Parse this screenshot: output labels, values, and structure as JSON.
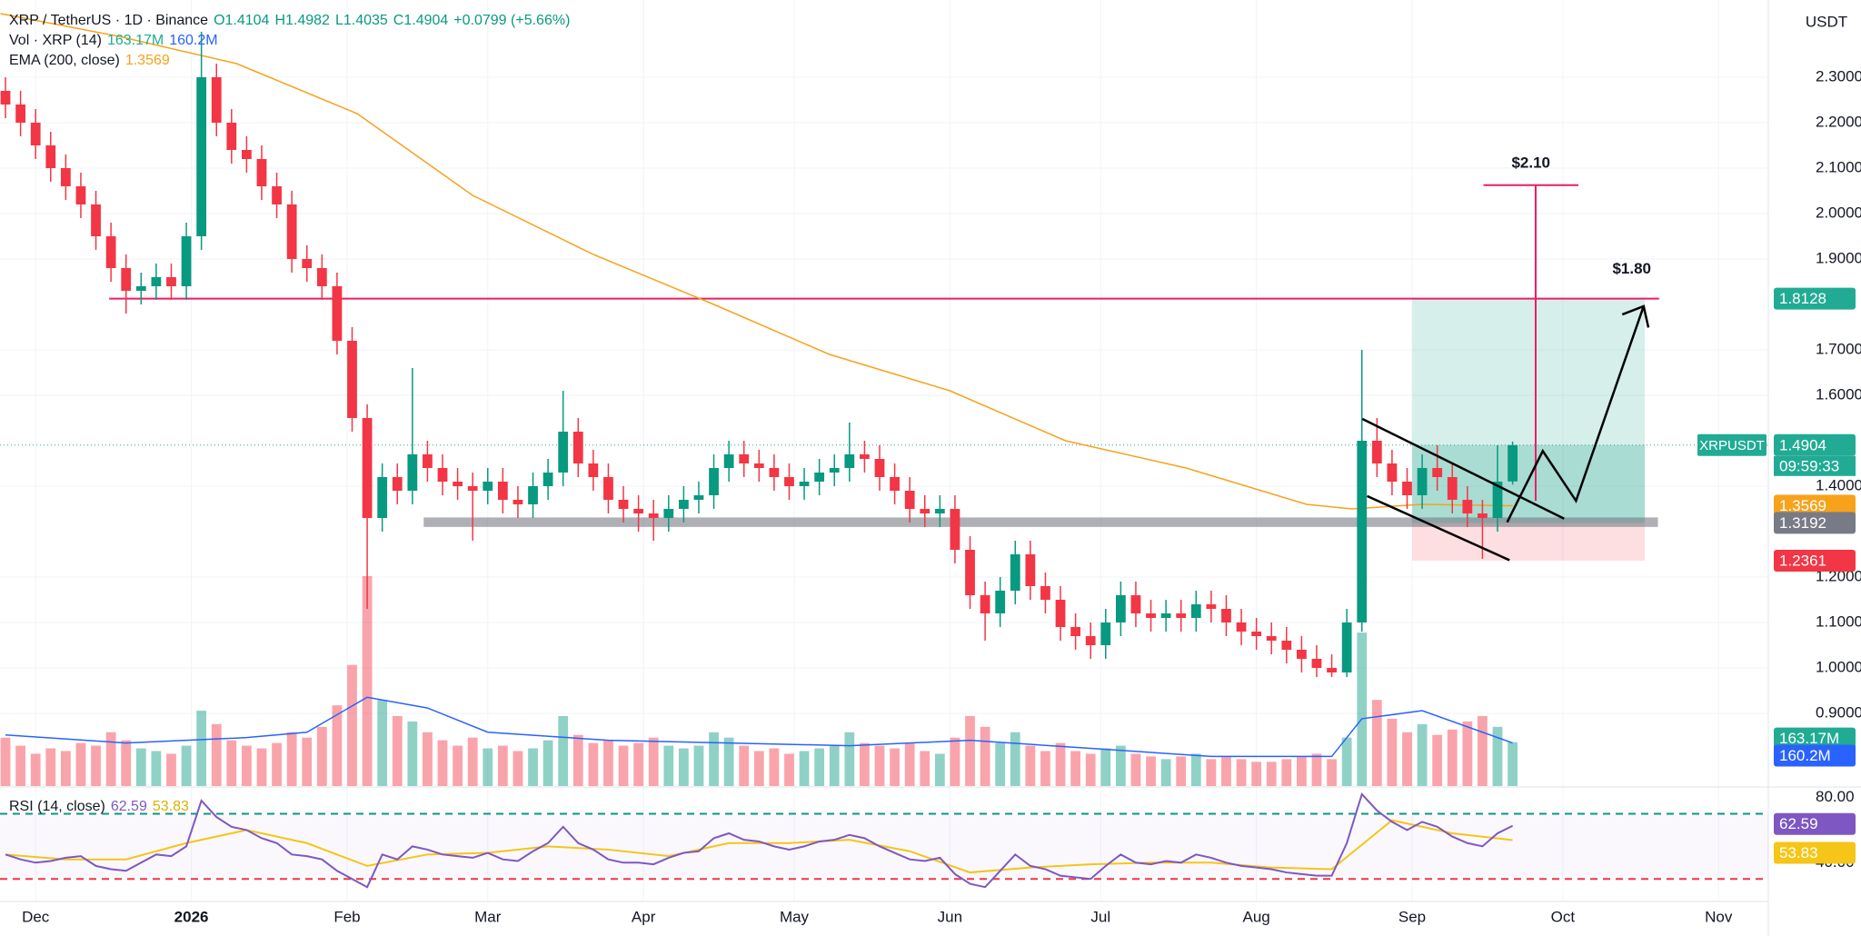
{
  "chart_data": {
    "type": "candlestick",
    "title": "XRP / TetherUS · 1D · Binance",
    "ohlc_text": [
      "O1.4104",
      "H1.4982",
      "L1.4035",
      "C1.4904",
      "+0.0799 (+5.66%)"
    ],
    "currency": "USDT",
    "volume_title": "Vol · XRP (14)",
    "ema_title": "EMA (200, close)",
    "rsi_title": "RSI (14, close)",
    "annotations": [
      "$2.10",
      "$1.80"
    ],
    "up_color": "#089981",
    "down_color": "#f23645",
    "xlim": [
      -7.09,
      344.9
    ],
    "xticks": [
      {
        "value": 0,
        "label": "Dec"
      },
      {
        "value": 31,
        "label": "2026"
      },
      {
        "value": 62,
        "label": "Feb"
      },
      {
        "value": 90,
        "label": "Mar"
      },
      {
        "value": 121,
        "label": "Apr"
      },
      {
        "value": 151,
        "label": "May"
      },
      {
        "value": 182,
        "label": "Jun"
      },
      {
        "value": 212,
        "label": "Jul"
      },
      {
        "value": 243,
        "label": "Aug"
      },
      {
        "value": 274,
        "label": "Sep"
      },
      {
        "value": 304,
        "label": "Oct"
      },
      {
        "value": 335,
        "label": "Nov"
      }
    ],
    "ylim": [
      0.74,
      2.47
    ],
    "yticks": [
      {
        "value": 2.3,
        "label": "2.3000"
      },
      {
        "value": 2.2,
        "label": "2.2000"
      },
      {
        "value": 2.1,
        "label": "2.1000"
      },
      {
        "value": 2.0,
        "label": "2.0000"
      },
      {
        "value": 1.9,
        "label": "1.9000"
      },
      {
        "value": 1.7,
        "label": "1.7000"
      },
      {
        "value": 1.6,
        "label": "1.6000"
      },
      {
        "value": 1.4,
        "label": "1.4000"
      },
      {
        "value": 1.2,
        "label": "1.2000"
      },
      {
        "value": 1.1,
        "label": "1.1000"
      },
      {
        "value": 1.0,
        "label": "1.0000"
      },
      {
        "value": 0.9,
        "label": "0.9000"
      }
    ],
    "grid": true,
    "x": [
      -6,
      -3,
      0,
      3,
      6,
      9,
      12,
      15,
      18,
      21,
      24,
      27,
      30,
      33,
      36,
      39,
      42,
      45,
      48,
      51,
      54,
      57,
      60,
      63,
      66,
      69,
      72,
      75,
      78,
      81,
      84,
      87,
      90,
      93,
      96,
      99,
      102,
      105,
      108,
      111,
      114,
      117,
      120,
      123,
      126,
      129,
      132,
      135,
      138,
      141,
      144,
      147,
      150,
      153,
      156,
      159,
      162,
      165,
      168,
      171,
      174,
      177,
      180,
      183,
      186,
      189,
      192,
      195,
      198,
      201,
      204,
      207,
      210,
      213,
      216,
      219,
      222,
      225,
      228,
      231,
      234,
      237,
      240,
      243,
      246,
      249,
      252,
      255,
      258,
      261,
      264,
      267,
      270,
      273,
      276,
      279,
      282,
      285,
      288,
      291,
      294
    ],
    "open": [
      2.27,
      2.24,
      2.2,
      2.15,
      2.1,
      2.06,
      2.02,
      1.95,
      1.88,
      1.83,
      1.84,
      1.86,
      1.84,
      1.95,
      2.3,
      2.2,
      2.14,
      2.12,
      2.06,
      2.02,
      1.9,
      1.88,
      1.84,
      1.72,
      1.55,
      1.33,
      1.42,
      1.39,
      1.47,
      1.44,
      1.41,
      1.4,
      1.39,
      1.41,
      1.37,
      1.36,
      1.4,
      1.43,
      1.52,
      1.45,
      1.42,
      1.37,
      1.35,
      1.34,
      1.33,
      1.35,
      1.37,
      1.38,
      1.44,
      1.47,
      1.45,
      1.44,
      1.42,
      1.4,
      1.41,
      1.43,
      1.44,
      1.47,
      1.46,
      1.42,
      1.39,
      1.35,
      1.34,
      1.35,
      1.26,
      1.16,
      1.12,
      1.17,
      1.25,
      1.18,
      1.15,
      1.09,
      1.07,
      1.05,
      1.1,
      1.16,
      1.12,
      1.11,
      1.12,
      1.11,
      1.14,
      1.13,
      1.1,
      1.08,
      1.07,
      1.06,
      1.04,
      1.02,
      1.0,
      0.99,
      1.1,
      1.5,
      1.45,
      1.41,
      1.38,
      1.44,
      1.42,
      1.37,
      1.34,
      1.33,
      1.4104
    ],
    "high": [
      2.3,
      2.27,
      2.23,
      2.18,
      2.13,
      2.09,
      2.05,
      1.98,
      1.91,
      1.87,
      1.89,
      1.89,
      1.98,
      2.4,
      2.33,
      2.23,
      2.17,
      2.15,
      2.09,
      2.05,
      1.93,
      1.91,
      1.87,
      1.75,
      1.58,
      1.45,
      1.45,
      1.66,
      1.5,
      1.47,
      1.44,
      1.43,
      1.44,
      1.44,
      1.4,
      1.43,
      1.46,
      1.61,
      1.55,
      1.48,
      1.45,
      1.4,
      1.38,
      1.37,
      1.38,
      1.4,
      1.41,
      1.47,
      1.5,
      1.5,
      1.48,
      1.47,
      1.45,
      1.44,
      1.46,
      1.47,
      1.54,
      1.5,
      1.49,
      1.45,
      1.42,
      1.38,
      1.38,
      1.38,
      1.29,
      1.19,
      1.2,
      1.28,
      1.28,
      1.21,
      1.18,
      1.12,
      1.1,
      1.13,
      1.19,
      1.19,
      1.15,
      1.15,
      1.15,
      1.17,
      1.17,
      1.16,
      1.13,
      1.11,
      1.1,
      1.09,
      1.07,
      1.05,
      1.03,
      1.13,
      1.7,
      1.55,
      1.48,
      1.44,
      1.47,
      1.49,
      1.45,
      1.4,
      1.37,
      1.49,
      1.4982
    ],
    "low": [
      2.21,
      2.17,
      2.12,
      2.07,
      2.03,
      1.99,
      1.92,
      1.85,
      1.78,
      1.8,
      1.81,
      1.81,
      1.81,
      1.92,
      2.17,
      2.11,
      2.09,
      2.03,
      1.99,
      1.87,
      1.85,
      1.81,
      1.69,
      1.52,
      1.13,
      1.3,
      1.36,
      1.36,
      1.41,
      1.38,
      1.37,
      1.28,
      1.36,
      1.34,
      1.33,
      1.33,
      1.37,
      1.4,
      1.42,
      1.39,
      1.34,
      1.32,
      1.3,
      1.28,
      1.3,
      1.32,
      1.34,
      1.35,
      1.41,
      1.42,
      1.41,
      1.39,
      1.37,
      1.37,
      1.38,
      1.4,
      1.41,
      1.43,
      1.39,
      1.36,
      1.32,
      1.31,
      1.31,
      1.23,
      1.13,
      1.06,
      1.09,
      1.14,
      1.15,
      1.12,
      1.06,
      1.04,
      1.02,
      1.02,
      1.07,
      1.09,
      1.08,
      1.08,
      1.08,
      1.08,
      1.1,
      1.07,
      1.05,
      1.04,
      1.03,
      1.01,
      0.99,
      0.98,
      0.98,
      0.98,
      1.08,
      1.42,
      1.38,
      1.35,
      1.35,
      1.39,
      1.34,
      1.31,
      1.24,
      1.3,
      1.4035
    ],
    "close": [
      2.24,
      2.2,
      2.15,
      2.1,
      2.06,
      2.02,
      1.95,
      1.88,
      1.83,
      1.84,
      1.86,
      1.84,
      1.95,
      2.3,
      2.2,
      2.14,
      2.12,
      2.06,
      2.02,
      1.9,
      1.88,
      1.84,
      1.72,
      1.55,
      1.33,
      1.42,
      1.39,
      1.47,
      1.44,
      1.41,
      1.4,
      1.39,
      1.41,
      1.37,
      1.36,
      1.4,
      1.43,
      1.52,
      1.45,
      1.42,
      1.37,
      1.35,
      1.34,
      1.33,
      1.35,
      1.37,
      1.38,
      1.44,
      1.47,
      1.45,
      1.44,
      1.42,
      1.4,
      1.41,
      1.43,
      1.44,
      1.47,
      1.46,
      1.42,
      1.39,
      1.35,
      1.34,
      1.35,
      1.26,
      1.16,
      1.12,
      1.17,
      1.25,
      1.18,
      1.15,
      1.09,
      1.07,
      1.05,
      1.1,
      1.16,
      1.12,
      1.11,
      1.12,
      1.11,
      1.14,
      1.13,
      1.1,
      1.08,
      1.07,
      1.06,
      1.04,
      1.02,
      1.0,
      0.99,
      1.1,
      1.5,
      1.45,
      1.41,
      1.38,
      1.44,
      1.42,
      1.37,
      1.34,
      1.33,
      1.41,
      1.4904
    ],
    "volume_ylim": [
      0,
      2920
    ],
    "volume": [
      180,
      150,
      120,
      140,
      130,
      160,
      150,
      200,
      170,
      140,
      130,
      120,
      150,
      280,
      230,
      170,
      150,
      140,
      160,
      200,
      180,
      220,
      300,
      450,
      780,
      320,
      260,
      240,
      200,
      170,
      150,
      180,
      140,
      150,
      130,
      140,
      170,
      260,
      190,
      160,
      170,
      150,
      160,
      180,
      150,
      140,
      150,
      200,
      180,
      150,
      130,
      140,
      120,
      130,
      140,
      150,
      200,
      160,
      150,
      140,
      160,
      130,
      120,
      180,
      260,
      220,
      160,
      200,
      150,
      130,
      160,
      130,
      120,
      140,
      150,
      120,
      110,
      100,
      110,
      120,
      100,
      110,
      100,
      90,
      90,
      100,
      110,
      120,
      100,
      180,
      570,
      320,
      250,
      200,
      230,
      190,
      210,
      240,
      260,
      220,
      163.17
    ],
    "volume_ma": {
      "color": "#2962ff",
      "x": [
        -6,
        18,
        42,
        54,
        66,
        78,
        90,
        114,
        138,
        162,
        186,
        210,
        234,
        258,
        264,
        276,
        294
      ],
      "values": [
        190,
        160,
        180,
        200,
        330,
        290,
        200,
        170,
        160,
        150,
        170,
        140,
        110,
        110,
        250,
        280,
        160.2
      ]
    },
    "volume_levels": [
      {
        "value": 163.17,
        "label": "163.17M",
        "color": "#22ab94"
      },
      {
        "value": 160.2,
        "label": "160.2M",
        "color": "#2962ff"
      }
    ],
    "ema": {
      "color": "#f7a21b",
      "x": [
        -7,
        16.5,
        40,
        64,
        87,
        111,
        135,
        158,
        182,
        205,
        229,
        253,
        262,
        276,
        294
      ],
      "values": [
        2.44,
        2.39,
        2.33,
        2.22,
        2.04,
        1.91,
        1.8,
        1.69,
        1.61,
        1.5,
        1.44,
        1.36,
        1.35,
        1.36,
        1.3569
      ]
    },
    "levels": [
      {
        "name": "XRPUSDT",
        "value": 1.4904,
        "countdown": "09:59:33",
        "color": "#22ab94"
      },
      {
        "value": 1.3569,
        "color": "#f7a21b"
      },
      {
        "value": 1.3192,
        "color": "#787b86"
      },
      {
        "value": 1.2361,
        "color": "#f23645"
      },
      {
        "value": 1.8128,
        "color": "#22ab94"
      }
    ],
    "rsi_ylim": [
      16.2,
      85.3
    ],
    "rsi_ticks": [
      {
        "value": 80,
        "label": "80.00"
      },
      {
        "value": 40,
        "label": "40.00"
      }
    ],
    "rsi_bands": [
      {
        "value": 70,
        "color": "#089981"
      },
      {
        "value": 30,
        "color": "#f23645"
      }
    ],
    "rsi": {
      "color": "#7e57c2",
      "values": [
        45,
        42,
        40,
        41,
        43,
        44,
        38,
        36,
        35,
        40,
        45,
        44,
        50,
        78,
        68,
        62,
        60,
        55,
        52,
        45,
        44,
        42,
        35,
        30,
        25,
        45,
        42,
        50,
        48,
        45,
        44,
        43,
        46,
        42,
        41,
        47,
        52,
        62,
        52,
        48,
        42,
        40,
        40,
        39,
        43,
        46,
        47,
        55,
        58,
        54,
        53,
        50,
        48,
        50,
        53,
        54,
        57,
        55,
        50,
        46,
        42,
        41,
        43,
        33,
        27,
        25,
        35,
        45,
        38,
        36,
        32,
        31,
        30,
        38,
        45,
        40,
        39,
        41,
        40,
        45,
        43,
        40,
        38,
        37,
        36,
        34,
        33,
        32,
        32,
        52,
        82,
        72,
        65,
        60,
        65,
        62,
        56,
        52,
        50,
        58,
        62.59
      ]
    },
    "rsi_ma": {
      "color": "#f5c518",
      "x": [
        -6,
        6,
        18,
        30,
        42,
        54,
        66,
        78,
        90,
        102,
        114,
        126,
        138,
        150,
        162,
        174,
        186,
        198,
        210,
        222,
        234,
        246,
        258,
        270,
        282,
        294
      ],
      "values": [
        45,
        42,
        42,
        52,
        60,
        52,
        38,
        45,
        46,
        50,
        48,
        44,
        52,
        52,
        54,
        47,
        34,
        37,
        39,
        40,
        40,
        37,
        36,
        66,
        58,
        53.83
      ]
    }
  }
}
